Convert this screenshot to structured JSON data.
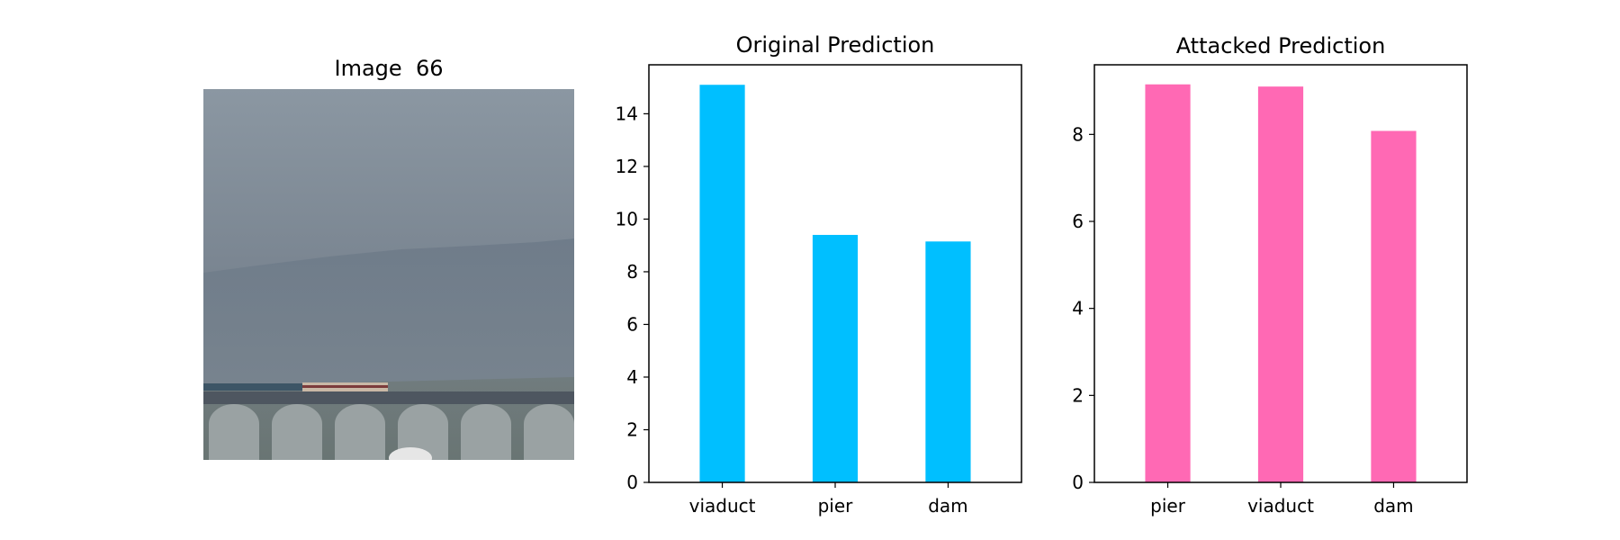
{
  "figure": {
    "image_title": "Image  66"
  },
  "chart_data": [
    {
      "type": "bar",
      "title": "Original Prediction",
      "categories": [
        "viaduct",
        "pier",
        "dam"
      ],
      "values": [
        15.1,
        9.4,
        9.15
      ],
      "ylim": [
        0,
        15.86
      ],
      "yticks": [
        0,
        2,
        4,
        6,
        8,
        10,
        12,
        14
      ],
      "color": "#00bfff",
      "xlabel": "",
      "ylabel": "",
      "grid": false
    },
    {
      "type": "bar",
      "title": "Attacked Prediction",
      "categories": [
        "pier",
        "viaduct",
        "dam"
      ],
      "values": [
        9.15,
        9.1,
        8.08
      ],
      "ylim": [
        0,
        9.6
      ],
      "yticks": [
        0,
        2,
        4,
        6,
        8
      ],
      "color": "#ff69b4",
      "xlabel": "",
      "ylabel": "",
      "grid": false
    }
  ]
}
